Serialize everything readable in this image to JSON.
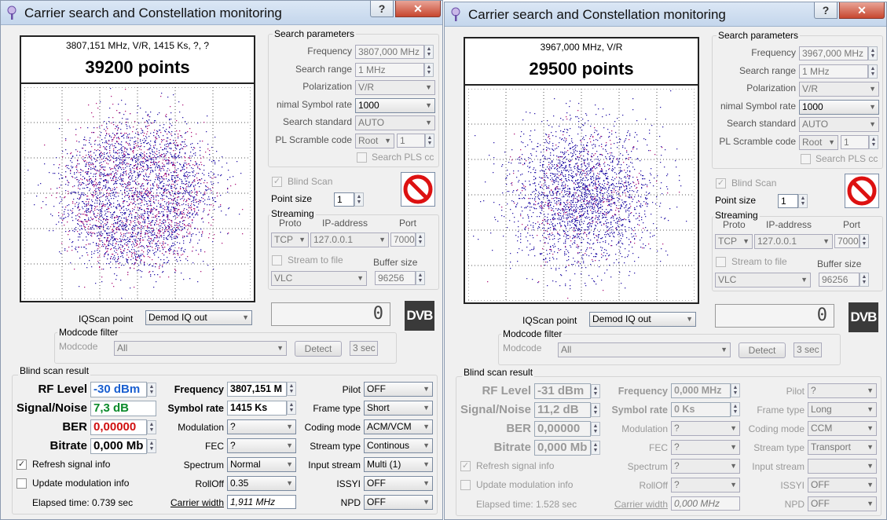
{
  "windows": [
    {
      "title": "Carrier search and Constellation monitoring",
      "help_label": "?",
      "close_label": "✕",
      "constellation": {
        "carrier_info": "3807,151 MHz, V/R, 1415 Ks, ?, ?",
        "points": "39200 points"
      },
      "search": {
        "group_title": "Search parameters",
        "frequency_label": "Frequency",
        "frequency_value": "3807,000 MHz",
        "range_label": "Search range",
        "range_value": "1 MHz",
        "polarization_label": "Polarization",
        "polarization_value": "V/R",
        "symbol_rate_label": "nimal Symbol rate",
        "symbol_rate_value": "1000",
        "standard_label": "Search standard",
        "standard_value": "AUTO",
        "pl_label": "PL Scramble code",
        "pl_mode": "Root",
        "pl_value": "1",
        "search_pls_label": "Search PLS cc"
      },
      "blind_scan_label": "Blind Scan",
      "point_size_label": "Point size",
      "point_size_value": "1",
      "streaming": {
        "title": "Streaming",
        "proto_label": "Proto",
        "ip_label": "IP-address",
        "port_label": "Port",
        "proto_value": "TCP",
        "ip_value": "127.0.0.1",
        "port_value": "7000",
        "stream_file_label": "Stream to file",
        "buffer_label": "Buffer size",
        "player_value": "VLC",
        "buffer_value": "96256"
      },
      "lcd_value": "0",
      "dvb_logo": "DVB",
      "iqscan_label": "IQScan point",
      "iqscan_value": "Demod IQ out",
      "modcode": {
        "title": "Modcode filter",
        "label": "Modcode",
        "value": "All",
        "detect_label": "Detect",
        "sec_value": "3 sec"
      },
      "result": {
        "title": "Blind scan result",
        "rf_label": "RF Level",
        "rf_value": "-30 dBm",
        "sn_label": "Signal/Noise",
        "sn_value": "7,3 dB",
        "ber_label": "BER",
        "ber_value": "0,00000",
        "bitrate_label": "Bitrate",
        "bitrate_value": "0,000 Mb",
        "freq_label": "Frequency",
        "freq_value": "3807,151 M",
        "sr_label": "Symbol rate",
        "sr_value": "1415 Ks",
        "modulation_label": "Modulation",
        "modulation_value": "?",
        "fec_label": "FEC",
        "fec_value": "?",
        "spectrum_label": "Spectrum",
        "spectrum_value": "Normal",
        "rolloff_label": "RollOff",
        "rolloff_value": "0.35",
        "carrier_width_label": "Carrier width",
        "carrier_width_value": "1,911 MHz",
        "pilot_label": "Pilot",
        "pilot_value": "OFF",
        "frame_label": "Frame type",
        "frame_value": "Short",
        "coding_label": "Coding mode",
        "coding_value": "ACM/VCM",
        "stream_type_label": "Stream type",
        "stream_type_value": "Continous",
        "input_stream_label": "Input stream",
        "input_stream_value": "Multi (1)",
        "issyi_label": "ISSYI",
        "issyi_value": "OFF",
        "npd_label": "NPD",
        "npd_value": "OFF",
        "refresh_label": "Refresh signal info",
        "update_label": "Update modulation info",
        "elapsed": "Elapsed time: 0.739 sec"
      }
    },
    {
      "title": "Carrier search and Constellation monitoring",
      "help_label": "?",
      "close_label": "✕",
      "constellation": {
        "carrier_info": "3967,000 MHz, V/R",
        "points": "29500 points"
      },
      "search": {
        "group_title": "Search parameters",
        "frequency_label": "Frequency",
        "frequency_value": "3967,000 MHz",
        "range_label": "Search range",
        "range_value": "1 MHz",
        "polarization_label": "Polarization",
        "polarization_value": "V/R",
        "symbol_rate_label": "nimal Symbol rate",
        "symbol_rate_value": "1000",
        "standard_label": "Search standard",
        "standard_value": "AUTO",
        "pl_label": "PL Scramble code",
        "pl_mode": "Root",
        "pl_value": "1",
        "search_pls_label": "Search PLS cc"
      },
      "blind_scan_label": "Blind Scan",
      "point_size_label": "Point size",
      "point_size_value": "1",
      "streaming": {
        "title": "Streaming",
        "proto_label": "Proto",
        "ip_label": "IP-address",
        "port_label": "Port",
        "proto_value": "TCP",
        "ip_value": "127.0.0.1",
        "port_value": "7000",
        "stream_file_label": "Stream to file",
        "buffer_label": "Buffer size",
        "player_value": "VLC",
        "buffer_value": "96256"
      },
      "lcd_value": "0",
      "dvb_logo": "DVB",
      "iqscan_label": "IQScan point",
      "iqscan_value": "Demod IQ out",
      "modcode": {
        "title": "Modcode filter",
        "label": "Modcode",
        "value": "All",
        "detect_label": "Detect",
        "sec_value": "3 sec"
      },
      "result": {
        "title": "Blind scan result",
        "rf_label": "RF Level",
        "rf_value": "-31 dBm",
        "sn_label": "Signal/Noise",
        "sn_value": "11,2 dB",
        "ber_label": "BER",
        "ber_value": "0,00000",
        "bitrate_label": "Bitrate",
        "bitrate_value": "0,000 Mb",
        "freq_label": "Frequency",
        "freq_value": "0,000 MHz",
        "sr_label": "Symbol rate",
        "sr_value": "0 Ks",
        "modulation_label": "Modulation",
        "modulation_value": "?",
        "fec_label": "FEC",
        "fec_value": "?",
        "spectrum_label": "Spectrum",
        "spectrum_value": "?",
        "rolloff_label": "RollOff",
        "rolloff_value": "?",
        "carrier_width_label": "Carrier width",
        "carrier_width_value": "0,000 MHz",
        "pilot_label": "Pilot",
        "pilot_value": "?",
        "frame_label": "Frame type",
        "frame_value": "Long",
        "coding_label": "Coding mode",
        "coding_value": "CCM",
        "stream_type_label": "Stream type",
        "stream_type_value": "Transport",
        "input_stream_label": "Input stream",
        "input_stream_value": "",
        "issyi_label": "ISSYI",
        "issyi_value": "OFF",
        "npd_label": "NPD",
        "npd_value": "OFF",
        "refresh_label": "Refresh signal info",
        "update_label": "Update modulation info",
        "elapsed": "Elapsed time: 1.528 sec"
      }
    }
  ],
  "colors": {
    "points_primary": "#2a1aa8",
    "points_secondary": "#b0187a",
    "value_blue": "#1a5fd0",
    "value_green": "#0a8a2a",
    "value_red": "#d01010"
  }
}
